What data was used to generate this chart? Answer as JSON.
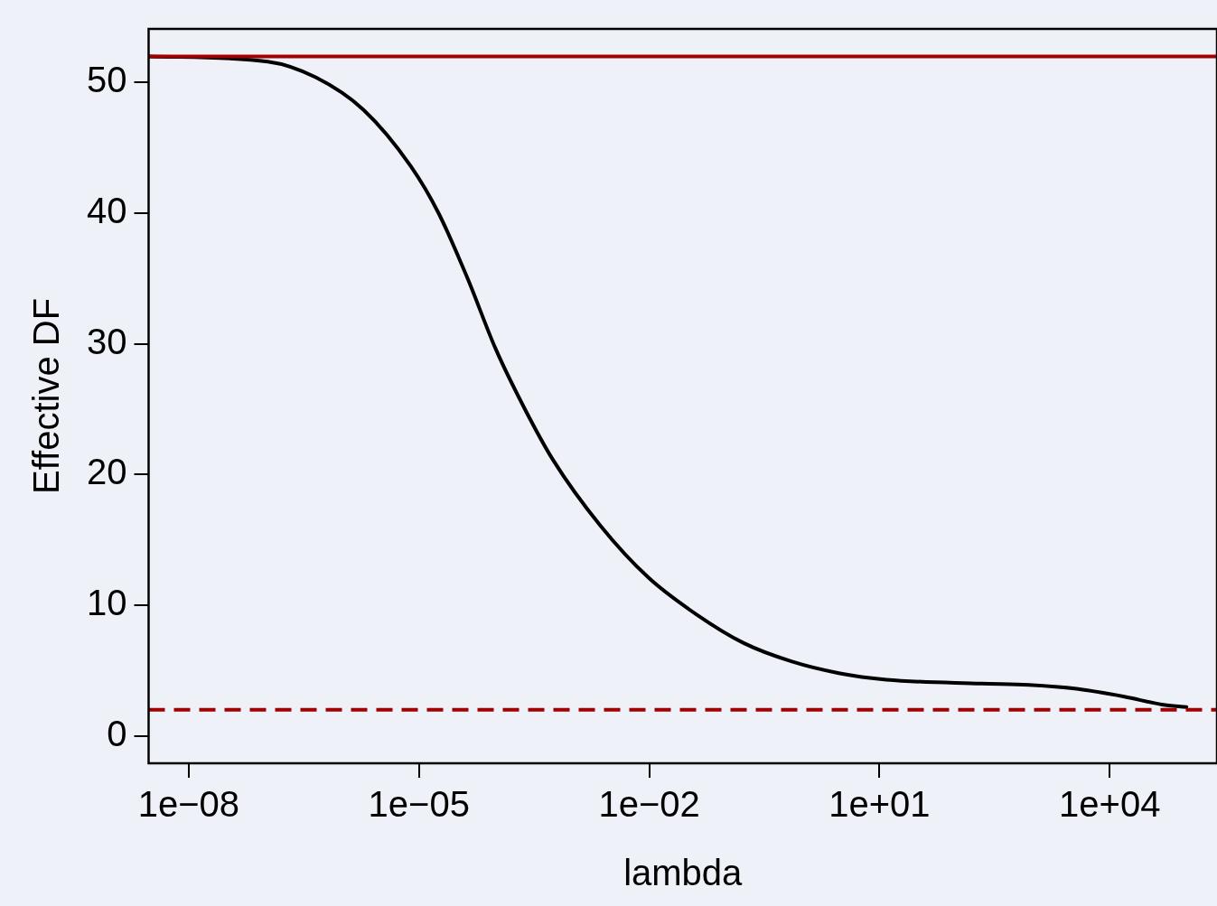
{
  "chart_data": {
    "type": "line",
    "xlabel": "lambda",
    "ylabel": "Effective DF",
    "x": [
      3e-09,
      1.07e-07,
      4.5e-07,
      1.9e-06,
      7.8e-06,
      1.8e-05,
      4.3e-05,
      0.0001,
      0.00024,
      0.00056,
      0.0023,
      0.0098,
      0.041,
      0.17,
      0.71,
      2.95,
      12.3,
      214,
      891,
      3715,
      15500,
      47900,
      100000
    ],
    "series": [
      {
        "color": "#000000",
        "values": [
          52,
          51.6,
          50.4,
          47.9,
          43.6,
          40,
          35,
          29.6,
          25,
          21.1,
          16.1,
          12.1,
          9.3,
          7.1,
          5.7,
          4.8,
          4.3,
          4.0,
          3.9,
          3.6,
          3.0,
          2.4,
          2.2
        ]
      }
    ],
    "log": "x",
    "xlim": [
      3e-09,
      250000
    ],
    "ylim": [
      -2.1,
      54.1
    ],
    "xticks": [
      {
        "value": 1e-08,
        "label": "1e−08"
      },
      {
        "value": 1e-05,
        "label": "1e−05"
      },
      {
        "value": 0.01,
        "label": "1e−02"
      },
      {
        "value": 10,
        "label": "1e+01"
      },
      {
        "value": 10000,
        "label": "1e+04"
      }
    ],
    "yticks": [
      0,
      10,
      20,
      30,
      40,
      50
    ],
    "ref_lines": [
      {
        "axis": "y",
        "value": 52,
        "color": "#a00000",
        "line_style": "solid"
      },
      {
        "axis": "y",
        "value": 2,
        "color": "#a00000",
        "line_style": "dashed"
      }
    ],
    "grid": false,
    "legend": false,
    "marker": "none",
    "line_style": "solid"
  }
}
